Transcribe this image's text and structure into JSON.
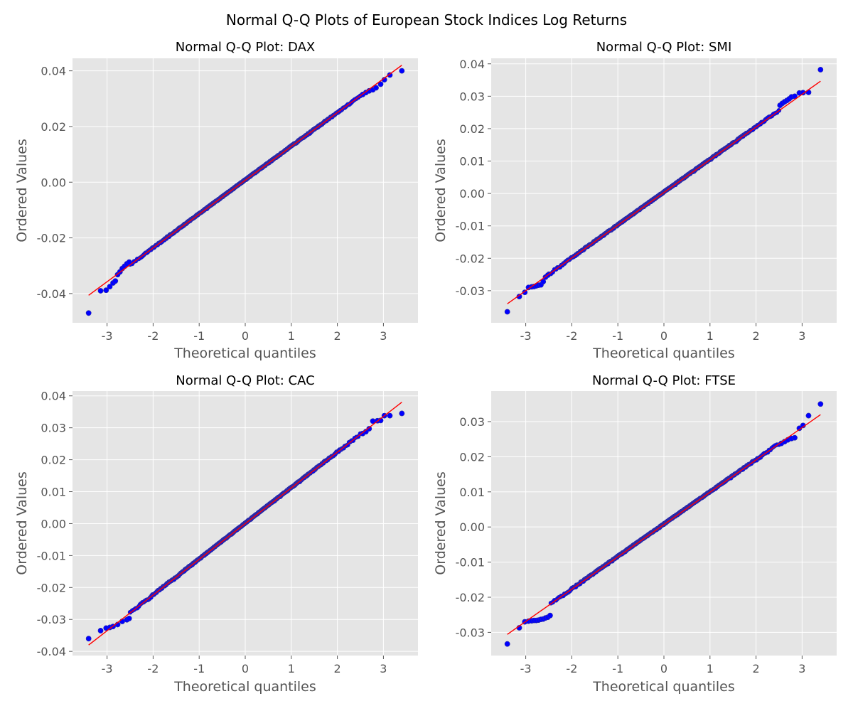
{
  "figure": {
    "title": "Normal Q-Q Plots of European Stock Indices Log Returns"
  },
  "style": {
    "point_color": "#0000ff",
    "point_edge_color": "#2c2ca8",
    "fit_line_color": "#ff0000",
    "background_color": "#e5e5e5",
    "grid_color": "#ffffff"
  },
  "chart_data": [
    {
      "type": "scatter",
      "title": "Normal Q-Q Plot: DAX",
      "xlabel": "Theoretical quantiles",
      "ylabel": "Ordered Values",
      "xlim": [
        -3.75,
        3.75
      ],
      "ylim": [
        -0.0505,
        0.0445
      ],
      "xticks": [
        -3,
        -2,
        -1,
        0,
        1,
        2,
        3
      ],
      "yticks": [
        -0.04,
        -0.02,
        0.0,
        0.02,
        0.04
      ],
      "ytick_labels": [
        "-0.04",
        "-0.02",
        "0.00",
        "0.02",
        "0.04"
      ],
      "grid": true,
      "fit_line": {
        "slope": 0.01215,
        "intercept": 0.0007
      },
      "tail_points": [
        {
          "x": -3.4,
          "y": -0.047
        },
        {
          "x": -3.14,
          "y": -0.039
        },
        {
          "x": -3.02,
          "y": -0.0388
        },
        {
          "x": -2.94,
          "y": -0.0375
        },
        {
          "x": -2.87,
          "y": -0.0362
        },
        {
          "x": -2.82,
          "y": -0.0355
        },
        {
          "x": -2.77,
          "y": -0.0332
        },
        {
          "x": -2.72,
          "y": -0.0322
        },
        {
          "x": -2.67,
          "y": -0.031
        },
        {
          "x": -2.62,
          "y": -0.0302
        },
        {
          "x": -2.57,
          "y": -0.0293
        },
        {
          "x": -2.52,
          "y": -0.0287
        },
        {
          "x": 2.55,
          "y": 0.0315
        },
        {
          "x": 2.62,
          "y": 0.0322
        },
        {
          "x": 2.69,
          "y": 0.0328
        },
        {
          "x": 2.77,
          "y": 0.0332
        },
        {
          "x": 2.84,
          "y": 0.0339
        },
        {
          "x": 2.94,
          "y": 0.0352
        },
        {
          "x": 3.02,
          "y": 0.0368
        },
        {
          "x": 3.14,
          "y": 0.0385
        },
        {
          "x": 3.4,
          "y": 0.04
        }
      ]
    },
    {
      "type": "scatter",
      "title": "Normal Q-Q Plot: SMI",
      "xlabel": "Theoretical quantiles",
      "ylabel": "Ordered Values",
      "xlim": [
        -3.75,
        3.75
      ],
      "ylim": [
        -0.0399,
        0.0417
      ],
      "xticks": [
        -3,
        -2,
        -1,
        0,
        1,
        2,
        3
      ],
      "yticks": [
        -0.03,
        -0.02,
        -0.01,
        0.0,
        0.01,
        0.02,
        0.03,
        0.04
      ],
      "ytick_labels": [
        "-0.03",
        "-0.02",
        "-0.01",
        "0.00",
        "0.01",
        "0.02",
        "0.03",
        "0.04"
      ],
      "grid": true,
      "fit_line": {
        "slope": 0.0101,
        "intercept": 0.0003
      },
      "tail_points": [
        {
          "x": -3.4,
          "y": -0.0365
        },
        {
          "x": -3.14,
          "y": -0.0318
        },
        {
          "x": -3.02,
          "y": -0.0305
        },
        {
          "x": -2.94,
          "y": -0.029
        },
        {
          "x": -2.87,
          "y": -0.0288
        },
        {
          "x": -2.82,
          "y": -0.0287
        },
        {
          "x": -2.77,
          "y": -0.0285
        },
        {
          "x": -2.72,
          "y": -0.0283
        },
        {
          "x": -2.67,
          "y": -0.0282
        },
        {
          "x": -2.62,
          "y": -0.0272
        },
        {
          "x": -2.57,
          "y": -0.0258
        },
        {
          "x": -2.52,
          "y": -0.0252
        },
        {
          "x": 2.52,
          "y": 0.0272
        },
        {
          "x": 2.57,
          "y": 0.0278
        },
        {
          "x": 2.62,
          "y": 0.0283
        },
        {
          "x": 2.67,
          "y": 0.0287
        },
        {
          "x": 2.72,
          "y": 0.0292
        },
        {
          "x": 2.77,
          "y": 0.0298
        },
        {
          "x": 2.84,
          "y": 0.03
        },
        {
          "x": 2.94,
          "y": 0.031
        },
        {
          "x": 3.02,
          "y": 0.0311
        },
        {
          "x": 3.14,
          "y": 0.0312
        },
        {
          "x": 3.4,
          "y": 0.0382
        }
      ]
    },
    {
      "type": "scatter",
      "title": "Normal Q-Q Plot: CAC",
      "xlabel": "Theoretical quantiles",
      "ylabel": "Ordered Values",
      "xlim": [
        -3.75,
        3.75
      ],
      "ylim": [
        -0.0413,
        0.0415
      ],
      "xticks": [
        -3,
        -2,
        -1,
        0,
        1,
        2,
        3
      ],
      "yticks": [
        -0.04,
        -0.03,
        -0.02,
        -0.01,
        0.0,
        0.01,
        0.02,
        0.03,
        0.04
      ],
      "ytick_labels": [
        "-0.04",
        "-0.03",
        "-0.02",
        "-0.01",
        "0.00",
        "0.01",
        "0.02",
        "0.03",
        "0.04"
      ],
      "grid": true,
      "fit_line": {
        "slope": 0.01118,
        "intercept": 0.0
      },
      "tail_points": [
        {
          "x": -3.4,
          "y": -0.036
        },
        {
          "x": -3.14,
          "y": -0.0335
        },
        {
          "x": -3.02,
          "y": -0.0327
        },
        {
          "x": -2.94,
          "y": -0.0325
        },
        {
          "x": -2.87,
          "y": -0.0322
        },
        {
          "x": -2.77,
          "y": -0.0316
        },
        {
          "x": -2.67,
          "y": -0.0306
        },
        {
          "x": -2.57,
          "y": -0.0301
        },
        {
          "x": -2.52,
          "y": -0.0297
        },
        {
          "x": 2.55,
          "y": 0.0282
        },
        {
          "x": 2.62,
          "y": 0.0288
        },
        {
          "x": 2.69,
          "y": 0.0297
        },
        {
          "x": 2.77,
          "y": 0.0321
        },
        {
          "x": 2.87,
          "y": 0.0322
        },
        {
          "x": 2.94,
          "y": 0.0323
        },
        {
          "x": 3.02,
          "y": 0.0338
        },
        {
          "x": 3.14,
          "y": 0.0338
        },
        {
          "x": 3.4,
          "y": 0.0345
        }
      ]
    },
    {
      "type": "scatter",
      "title": "Normal Q-Q Plot: FTSE",
      "xlabel": "Theoretical quantiles",
      "ylabel": "Ordered Values",
      "xlim": [
        -3.75,
        3.75
      ],
      "ylim": [
        -0.0366,
        0.0387
      ],
      "xticks": [
        -3,
        -2,
        -1,
        0,
        1,
        2,
        3
      ],
      "yticks": [
        -0.03,
        -0.02,
        -0.01,
        0.0,
        0.01,
        0.02,
        0.03
      ],
      "ytick_labels": [
        "-0.03",
        "-0.02",
        "-0.01",
        "0.00",
        "0.01",
        "0.02",
        "0.03"
      ],
      "grid": true,
      "fit_line": {
        "slope": 0.0092,
        "intercept": 0.0007
      },
      "tail_points": [
        {
          "x": -3.4,
          "y": -0.0333
        },
        {
          "x": -3.14,
          "y": -0.0287
        },
        {
          "x": -3.02,
          "y": -0.027
        },
        {
          "x": -2.94,
          "y": -0.0268
        },
        {
          "x": -2.87,
          "y": -0.0267
        },
        {
          "x": -2.82,
          "y": -0.0266
        },
        {
          "x": -2.77,
          "y": -0.0266
        },
        {
          "x": -2.72,
          "y": -0.0265
        },
        {
          "x": -2.67,
          "y": -0.0263
        },
        {
          "x": -2.62,
          "y": -0.0262
        },
        {
          "x": -2.57,
          "y": -0.0259
        },
        {
          "x": -2.52,
          "y": -0.0257
        },
        {
          "x": -2.47,
          "y": -0.0252
        },
        {
          "x": 2.55,
          "y": 0.0238
        },
        {
          "x": 2.62,
          "y": 0.0243
        },
        {
          "x": 2.69,
          "y": 0.0248
        },
        {
          "x": 2.77,
          "y": 0.0252
        },
        {
          "x": 2.84,
          "y": 0.0254
        },
        {
          "x": 2.94,
          "y": 0.0281
        },
        {
          "x": 3.02,
          "y": 0.0289
        },
        {
          "x": 3.14,
          "y": 0.0317
        },
        {
          "x": 3.4,
          "y": 0.035
        }
      ]
    }
  ]
}
